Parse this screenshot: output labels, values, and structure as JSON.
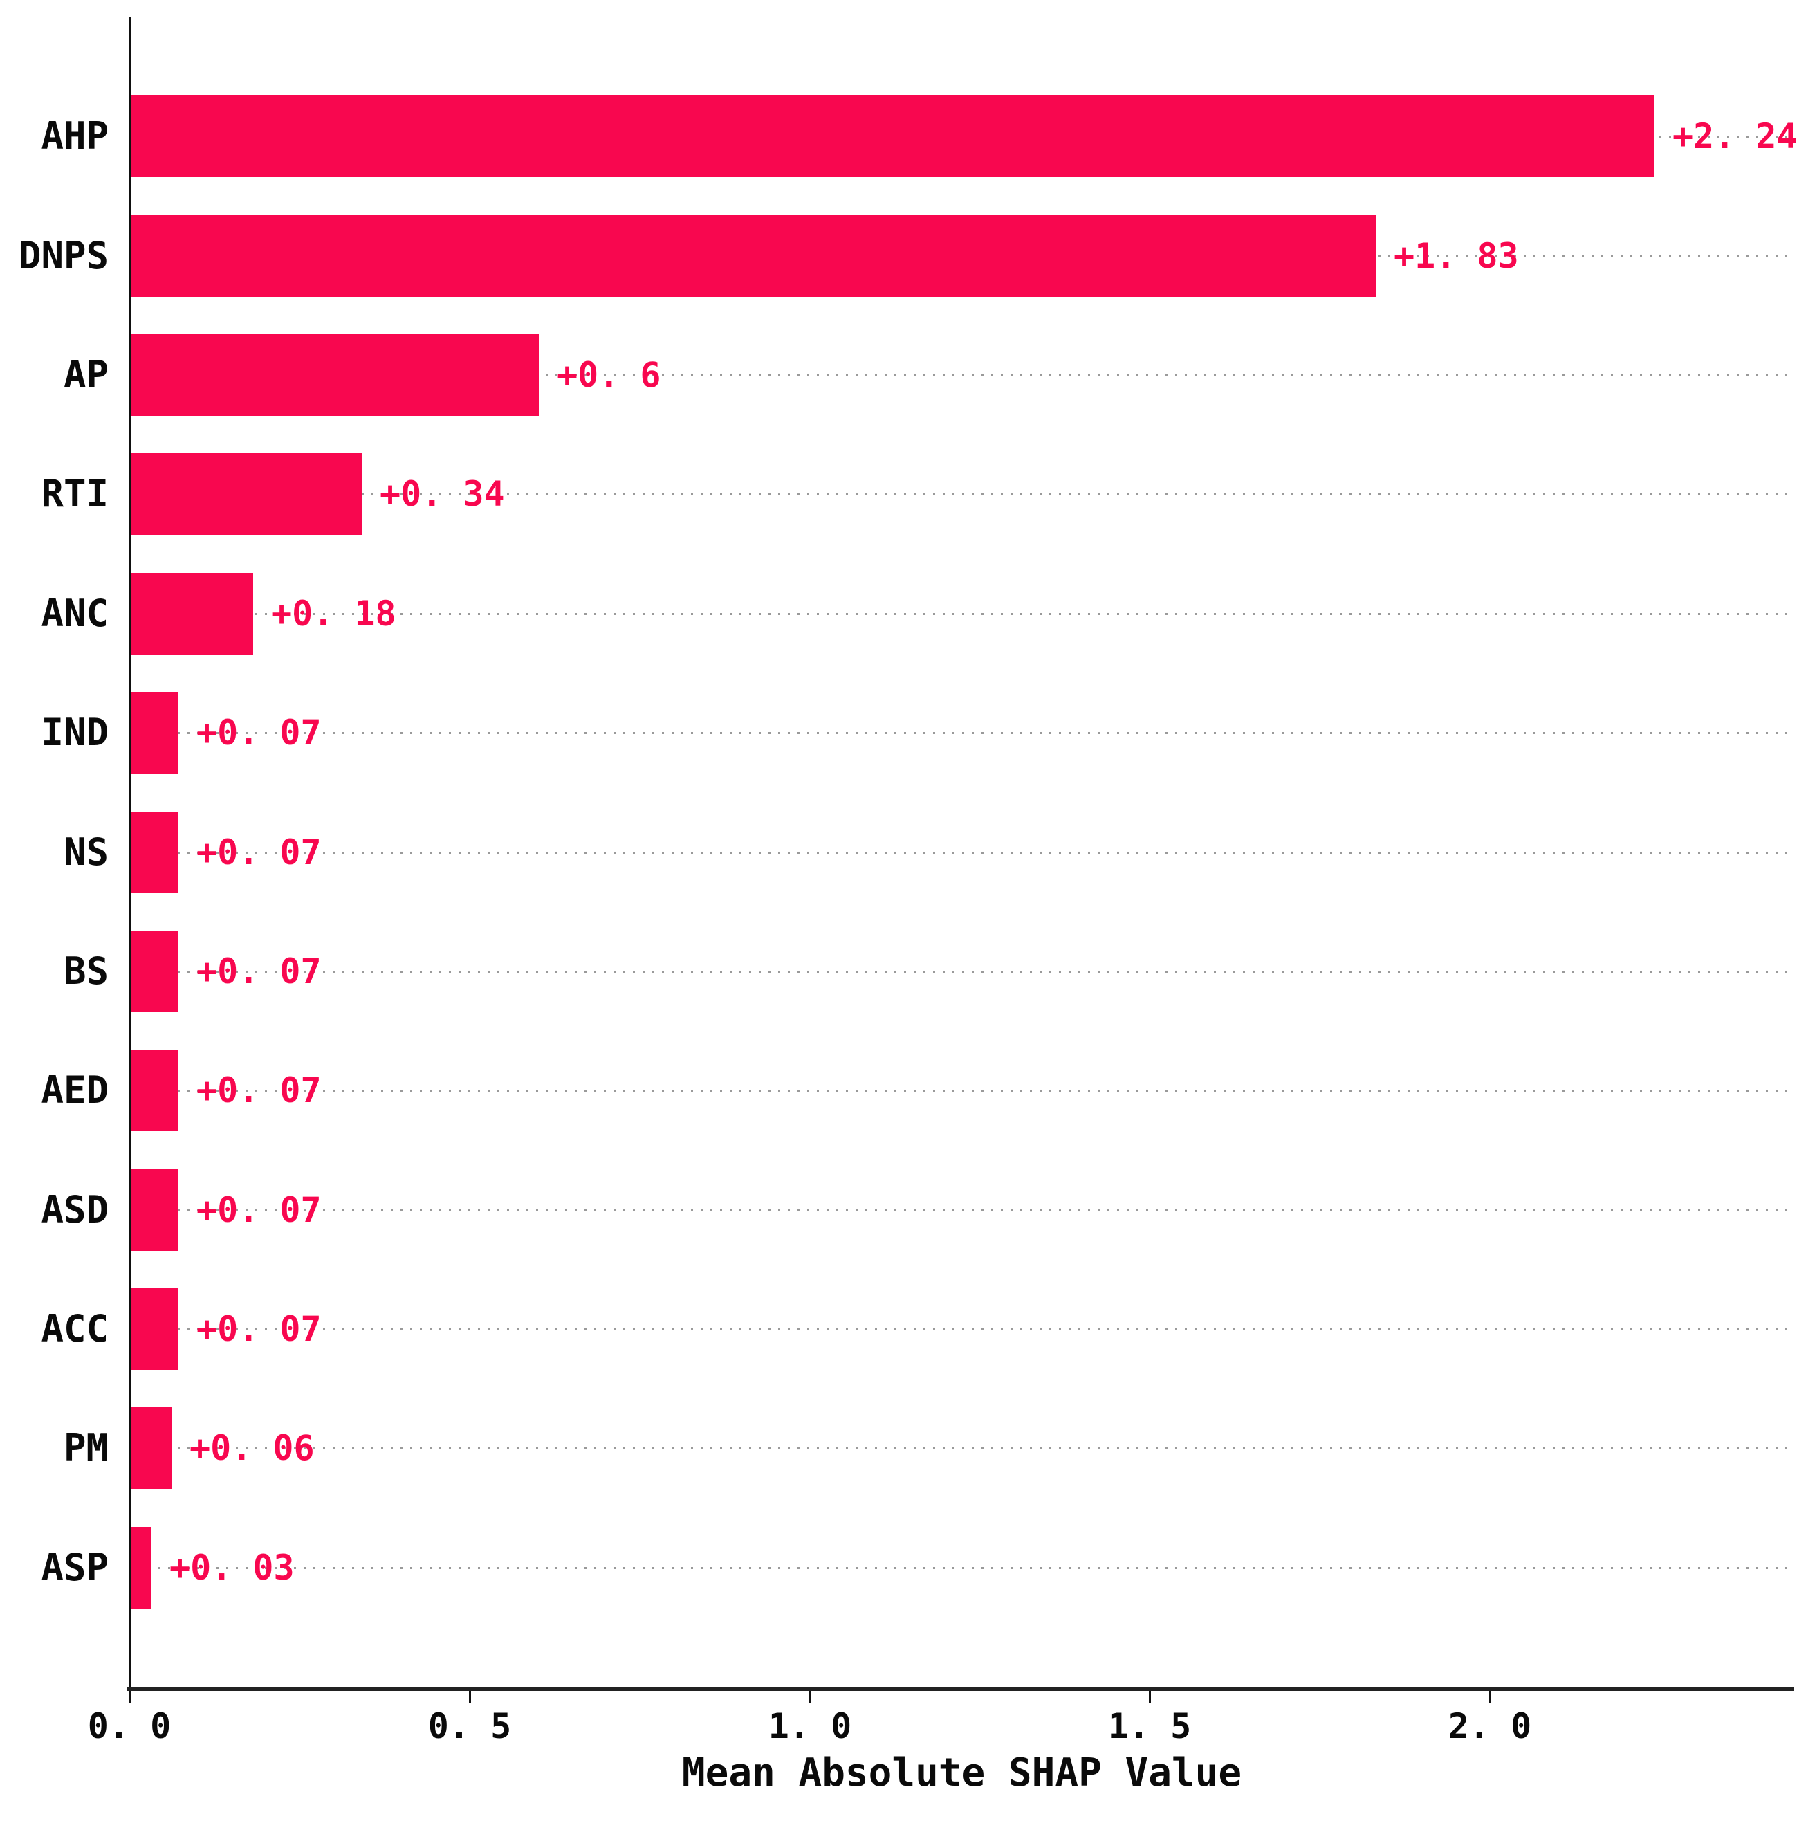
{
  "chart_data": {
    "type": "bar",
    "orientation": "horizontal",
    "title": "",
    "xlabel": "Mean Absolute SHAP Value",
    "ylabel": "",
    "categories": [
      "AHP",
      "DNPS",
      "AP",
      "RTI",
      "ANC",
      "IND",
      "NS",
      "BS",
      "AED",
      "ASD",
      "ACC",
      "PM",
      "ASP"
    ],
    "values": [
      2.24,
      1.83,
      0.6,
      0.34,
      0.18,
      0.07,
      0.07,
      0.07,
      0.07,
      0.07,
      0.07,
      0.06,
      0.03
    ],
    "bar_labels": [
      "+2. 24",
      "+1. 83",
      "+0. 6",
      "+0. 34",
      "+0. 18",
      "+0. 07",
      "+0. 07",
      "+0. 07",
      "+0. 07",
      "+0. 07",
      "+0. 07",
      "+0. 06",
      "+0. 03"
    ],
    "x_ticks": [
      0,
      0.5,
      1.0,
      1.5,
      2.0
    ],
    "x_tick_labels": [
      "0. 0",
      "0. 5",
      "1. 0",
      "1. 5",
      "2. 0"
    ],
    "xlim": [
      0,
      2.447
    ],
    "grid": "horizontal dotted line per category row, full plot width",
    "legend": "none",
    "colors": {
      "bar": "#F8074F",
      "value_label": "#F8074F",
      "axis": "#111111",
      "text": "#0a0a0a",
      "gridline": "#9a9a9a",
      "background": "#ffffff"
    }
  }
}
